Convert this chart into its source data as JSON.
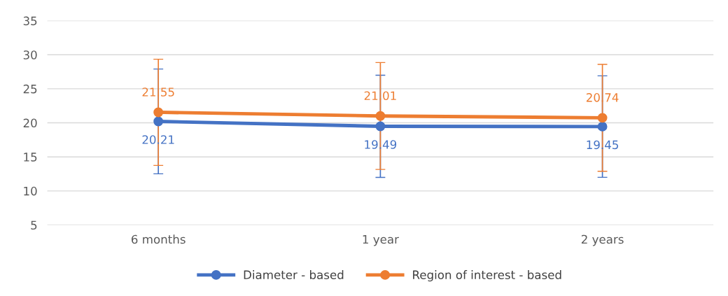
{
  "chart_data": {
    "type": "line",
    "categories": [
      "6 months",
      "1 year",
      "2 years"
    ],
    "series": [
      {
        "name": "Diameter - based",
        "color": "#4472c4",
        "values": [
          20.21,
          19.49,
          19.45
        ],
        "errors": [
          7.7,
          7.5,
          7.45
        ]
      },
      {
        "name": "Region of interest - based",
        "color": "#ed7d31",
        "values": [
          21.55,
          21.01,
          20.74
        ],
        "errors": [
          7.8,
          7.85,
          7.85
        ]
      }
    ],
    "ylim": [
      5,
      35
    ],
    "yticks": [
      5,
      10,
      15,
      20,
      25,
      30,
      35
    ],
    "grid": "y",
    "legend": "bottom",
    "marker": "circle",
    "line_style": "solid",
    "data_labels": true
  }
}
